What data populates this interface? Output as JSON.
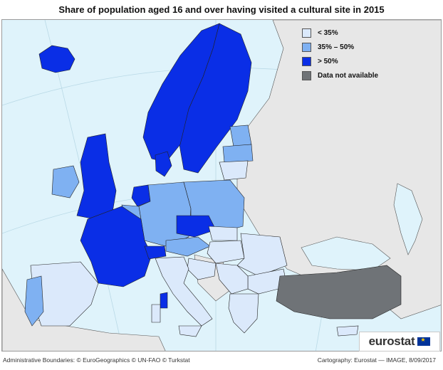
{
  "title": "Share of population aged 16 and over having visited a cultural site in 2015",
  "legend": [
    {
      "label": "< 35%",
      "color": "#dbe9fb"
    },
    {
      "label": "35% – 50%",
      "color": "#7fb1f2"
    },
    {
      "label": "> 50%",
      "color": "#0a2ee6"
    },
    {
      "label": "Data not available",
      "color": "#6f7377"
    }
  ],
  "colors": {
    "sea": "#dff3fb",
    "non_eu_land": "#e7e7e7",
    "border": "#2b2b2b"
  },
  "brand": "eurostat",
  "footer_left": "Administrative Boundaries: © EuroGeographics © UN-FAO © Turkstat",
  "footer_right": "Cartography: Eurostat — IMAGE, 8/09/2017"
}
